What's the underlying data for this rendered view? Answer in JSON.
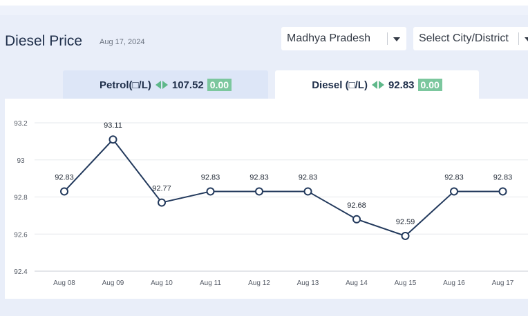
{
  "header": {
    "title": "Diesel Price",
    "date": "Aug 17, 2024"
  },
  "filters": {
    "state": "Madhya Pradesh",
    "city": "Select City/District"
  },
  "tabs": [
    {
      "label": "Petrol(□/L)",
      "price": "107.52",
      "change": "0.00"
    },
    {
      "label": "Diesel (□/L)",
      "price": "92.83",
      "change": "0.00"
    }
  ],
  "chart_data": {
    "type": "line",
    "categories": [
      "Aug 08",
      "Aug 09",
      "Aug 10",
      "Aug 11",
      "Aug 12",
      "Aug 13",
      "Aug 14",
      "Aug 15",
      "Aug 16",
      "Aug 17"
    ],
    "values": [
      92.83,
      93.11,
      92.77,
      92.83,
      92.83,
      92.83,
      92.68,
      92.59,
      92.83,
      92.83
    ],
    "yticks": [
      92.4,
      92.6,
      92.8,
      93,
      93.2
    ],
    "ylim": [
      92.4,
      93.2
    ],
    "grid": true,
    "line_color": "#22395c"
  }
}
